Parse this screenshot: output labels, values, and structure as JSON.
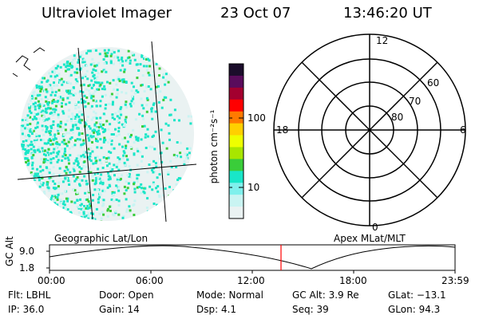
{
  "header": {
    "instrument": "Ultraviolet Imager",
    "date": "23 Oct 07",
    "time": "13:46:20 UT"
  },
  "colorbar": {
    "unit_label": "photon cm⁻²s⁻¹",
    "ticks": [
      "100",
      "10"
    ],
    "colors": [
      "#1b0d2b",
      "#5a0c5c",
      "#a3002f",
      "#ff0000",
      "#ff7a00",
      "#ffd000",
      "#eeff00",
      "#a8e600",
      "#3acd3a",
      "#19e6c8",
      "#7ff0ec",
      "#c9f4f2",
      "#eaf2f2"
    ]
  },
  "image_panel": {
    "caption": "Geographic Lat/Lon",
    "dominant_colors": [
      "#19e6c8",
      "#3acd3a",
      "#c9f4f2"
    ]
  },
  "polar_plot": {
    "caption": "Apex MLat/MLT",
    "mlt_labels": {
      "top": "12",
      "left": "18",
      "right": "6",
      "bottom": "0"
    },
    "mlat_labels": [
      "60",
      "70",
      "80"
    ]
  },
  "timeline": {
    "axis_label": "GC Alt",
    "y_ticks": [
      "9.0",
      "1.8"
    ],
    "x_ticks": [
      "00:00",
      "06:00",
      "12:00",
      "18:00",
      "23:59"
    ],
    "current_time_marker_color": "#ff0000"
  },
  "footer": {
    "flt": "Flt: LBHL",
    "door": "Door: Open",
    "mode": "Mode: Normal",
    "gc_alt": "GC Alt: 3.9 Re",
    "glat": "GLat: −13.1",
    "ip": "IP: 36.0",
    "gain": "Gain: 14",
    "dsp": "Dsp:     4.1",
    "seq": "Seq: 39",
    "glon": "GLon:  94.3"
  }
}
